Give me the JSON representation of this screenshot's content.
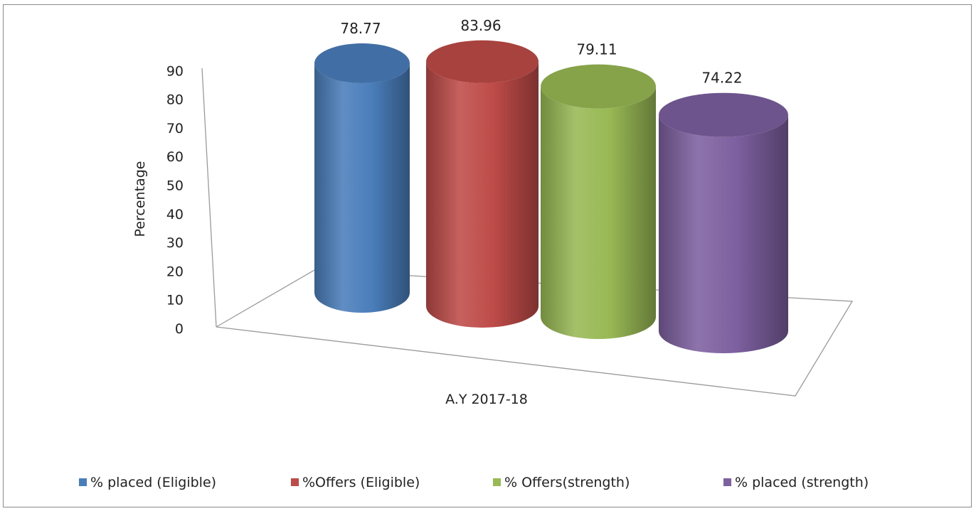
{
  "chart_data": {
    "type": "bar",
    "style": "3d-cylinder",
    "categories": [
      "A.Y 2017-18"
    ],
    "series": [
      {
        "name": "% placed (Eligible)",
        "values": [
          78.77
        ],
        "color": "#4a7ebb"
      },
      {
        "name": "%Offers (Eligible)",
        "values": [
          83.96
        ],
        "color": "#be4b48"
      },
      {
        "name": "% Offers(strength)",
        "values": [
          79.11
        ],
        "color": "#98b954"
      },
      {
        "name": "% placed (strength)",
        "values": [
          74.22
        ],
        "color": "#7d60a0"
      }
    ],
    "title": "",
    "xlabel": "",
    "ylabel": "Percentage",
    "ylim": [
      0,
      90
    ],
    "yticks": [
      0,
      10,
      20,
      30,
      40,
      50,
      60,
      70,
      80,
      90
    ],
    "grid": false,
    "legend_position": "bottom"
  }
}
